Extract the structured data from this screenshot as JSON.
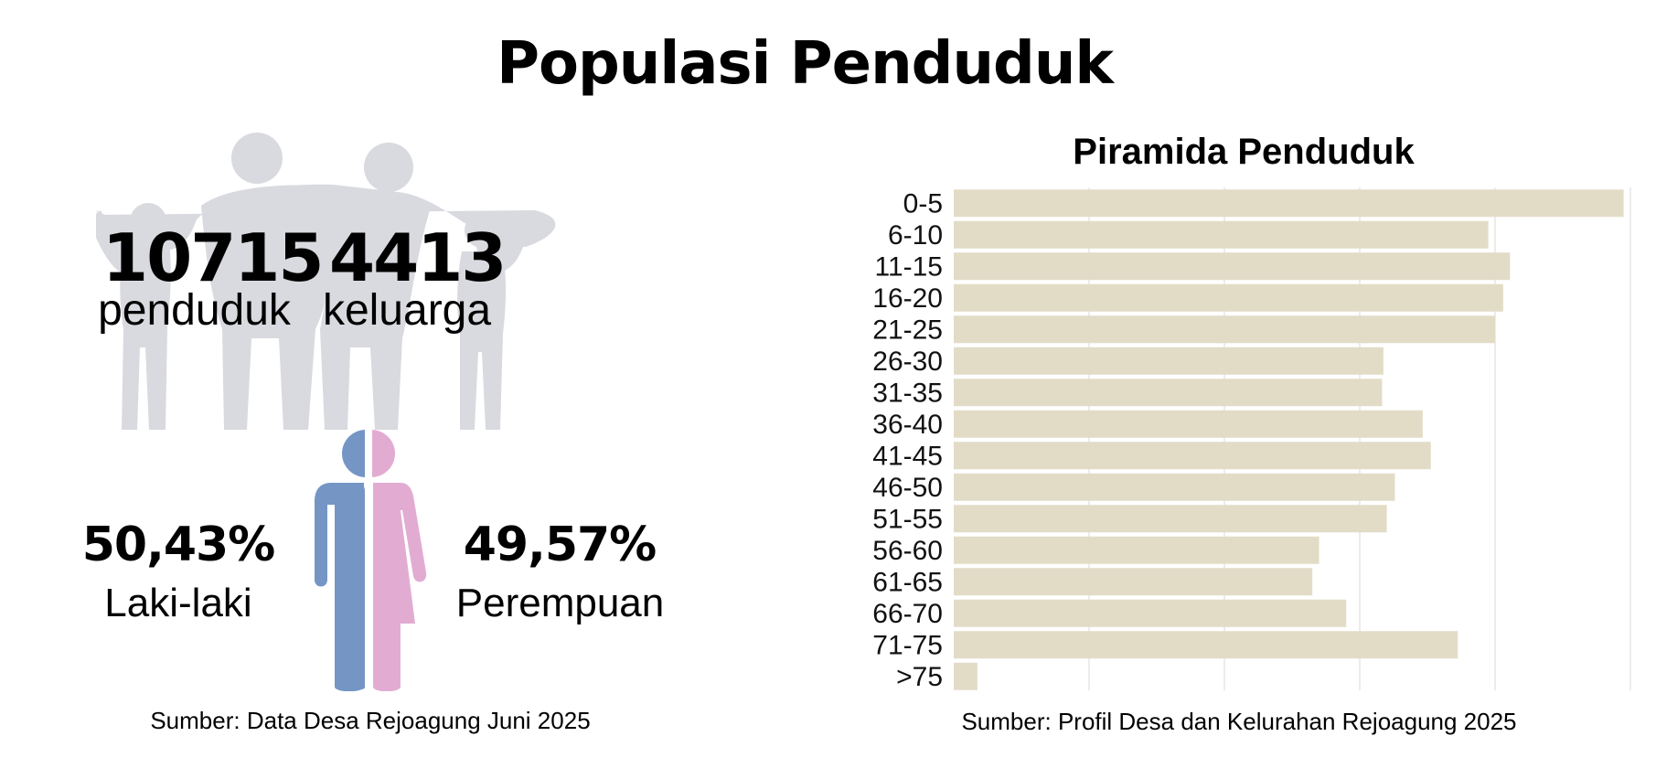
{
  "title": "Populasi Penduduk",
  "population": {
    "value": "10715",
    "label": "penduduk"
  },
  "families": {
    "value": "4413",
    "label": "keluarga"
  },
  "male": {
    "percent": "50,43%",
    "label": "Laki-laki"
  },
  "female": {
    "percent": "49,57%",
    "label": "Perempuan"
  },
  "left_source": "Sumber: Data Desa Rejoagung Juni 2025",
  "right_source": "Sumber: Profil Desa dan Kelurahan Rejoagung 2025",
  "colors": {
    "silhouette": "#d9dadf",
    "male": "#7596c5",
    "female": "#e2acd2",
    "bar": "#e2dcc7",
    "grid": "#e6e6e6"
  },
  "icons": [
    "family-silhouette-icon",
    "male-female-person-icon"
  ],
  "chart_data": {
    "type": "bar",
    "orientation": "horizontal",
    "title": "Piramida Penduduk",
    "categories": [
      "0-5",
      "6-10",
      "11-15",
      "16-20",
      "21-25",
      "26-30",
      "31-35",
      "36-40",
      "41-45",
      "46-50",
      "51-55",
      "56-60",
      "61-65",
      "66-70",
      "71-75",
      ">75"
    ],
    "values": [
      990,
      790,
      822,
      812,
      800,
      635,
      633,
      693,
      705,
      652,
      640,
      540,
      530,
      580,
      745,
      35
    ],
    "xlim": [
      0,
      1000
    ],
    "grid": true,
    "tick_labels_shown": false
  }
}
